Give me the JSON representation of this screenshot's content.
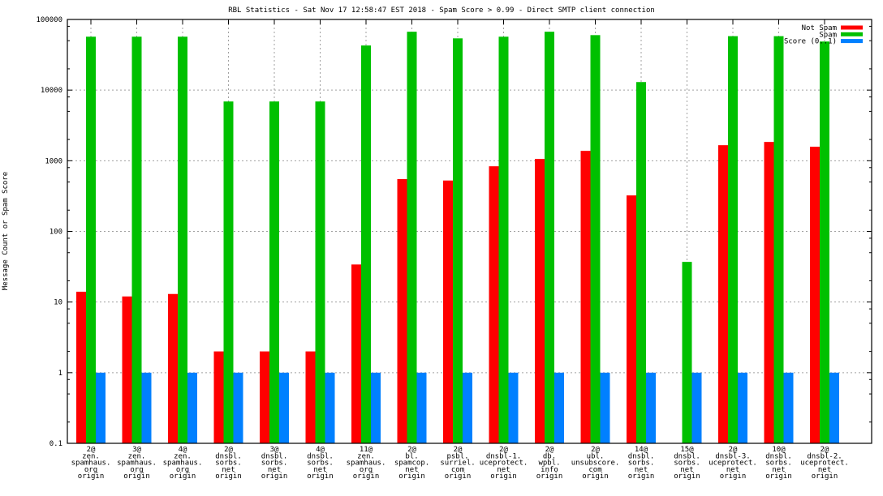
{
  "chart_data": {
    "type": "bar",
    "title": "RBL Statistics - Sat Nov 17 12:58:47 EST 2018 - Spam Score > 0.99 - Direct SMTP client connection",
    "xlabel": "",
    "ylabel": "Message Count or Spam Score",
    "yscale": "log",
    "ylim": [
      0.1,
      100000
    ],
    "yticks": [
      "0.1",
      "1",
      "10",
      "100",
      "1000",
      "10000",
      "100000"
    ],
    "grid": true,
    "legend_position": "top-right",
    "categories": [
      [
        "2@",
        "zen.",
        "spamhaus.",
        "org",
        "origin"
      ],
      [
        "3@",
        "zen.",
        "spamhaus.",
        "org",
        "origin"
      ],
      [
        "4@",
        "zen.",
        "spamhaus.",
        "org",
        "origin"
      ],
      [
        "2@",
        "dnsbl.",
        "sorbs.",
        "net",
        "origin"
      ],
      [
        "3@",
        "dnsbl.",
        "sorbs.",
        "net",
        "origin"
      ],
      [
        "4@",
        "dnsbl.",
        "sorbs.",
        "net",
        "origin"
      ],
      [
        "11@",
        "zen.",
        "spamhaus.",
        "org",
        "origin"
      ],
      [
        "2@",
        "bl.",
        "spamcop.",
        "net",
        "origin"
      ],
      [
        "2@",
        "psbl.",
        "surriel.",
        "com",
        "origin"
      ],
      [
        "2@",
        "dnsbl-1.",
        "uceprotect.",
        "net",
        "origin"
      ],
      [
        "2@",
        "db.",
        "wpbl.",
        "info",
        "origin"
      ],
      [
        "2@",
        "ubl.",
        "unsubscore.",
        "com",
        "origin"
      ],
      [
        "14@",
        "dnsbl.",
        "sorbs.",
        "net",
        "origin"
      ],
      [
        "15@",
        "dnsbl.",
        "sorbs.",
        "net",
        "origin"
      ],
      [
        "2@",
        "dnsbl-3.",
        "uceprotect.",
        "net",
        "origin"
      ],
      [
        "10@",
        "dnsbl.",
        "sorbs.",
        "net",
        "origin"
      ],
      [
        "2@",
        "dnsbl-2.",
        "uceprotect.",
        "net",
        "origin"
      ]
    ],
    "series": [
      {
        "name": "Not Spam",
        "color": "#ff0000",
        "values": [
          14,
          12,
          13,
          2,
          2,
          2,
          34,
          550,
          525,
          835,
          1060,
          1380,
          323,
          null,
          1660,
          1845,
          1580
        ]
      },
      {
        "name": "Spam",
        "color": "#00c000",
        "values": [
          57000,
          57000,
          57000,
          6900,
          6900,
          6900,
          42800,
          67000,
          54000,
          57000,
          67000,
          60000,
          13000,
          37,
          58000,
          58000,
          48700
        ]
      },
      {
        "name": "Score (0..1)",
        "color": "#0080ff",
        "values": [
          1,
          1,
          1,
          1,
          1,
          1,
          1,
          1,
          1,
          1,
          1,
          1,
          1,
          1,
          1,
          1,
          1
        ]
      }
    ]
  }
}
